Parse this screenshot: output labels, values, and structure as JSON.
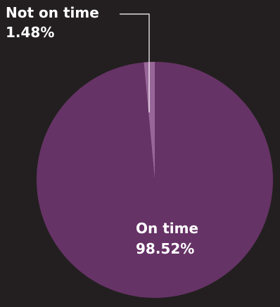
{
  "chart_data": {
    "type": "pie",
    "slices": [
      {
        "label": "On time",
        "value": 98.52,
        "value_text": "98.52%",
        "color": "#663366"
      },
      {
        "label": "Not on time",
        "value": 1.48,
        "value_text": "1.48%",
        "color": "#996699"
      }
    ]
  },
  "colors": {
    "background": "#231f20",
    "leader_line": "#ffffff",
    "label_text": "#ffffff"
  }
}
